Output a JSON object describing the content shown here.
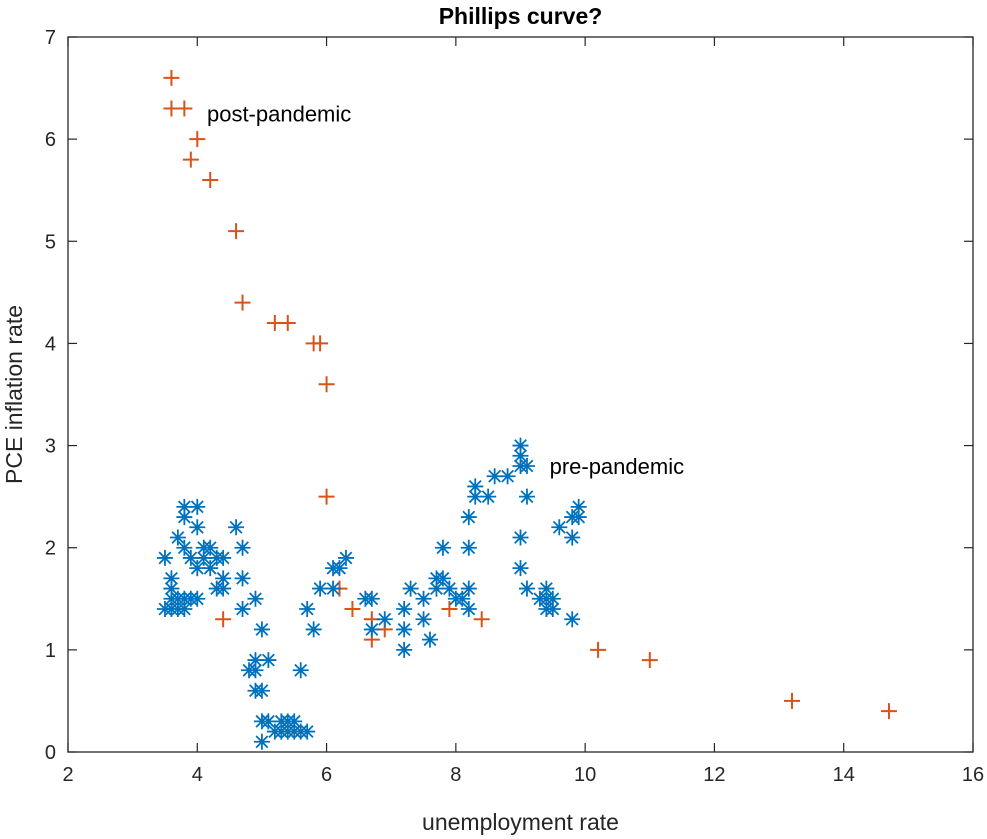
{
  "chart_data": {
    "type": "scatter",
    "title": "Phillips curve?",
    "xlabel": "unemployment rate",
    "ylabel": "PCE inflation rate",
    "xlim": [
      2,
      16
    ],
    "ylim": [
      0,
      7
    ],
    "xticks": [
      2,
      4,
      6,
      8,
      10,
      12,
      14,
      16
    ],
    "yticks": [
      0,
      1,
      2,
      3,
      4,
      5,
      6,
      7
    ],
    "grid": false,
    "colors": {
      "pre": "#0072bd",
      "post": "#d95319",
      "axis": "#262626"
    },
    "annotations": [
      {
        "text": "post-pandemic",
        "x": 4.15,
        "y": 6.25
      },
      {
        "text": "pre-pandemic",
        "x": 9.45,
        "y": 2.8
      }
    ],
    "series": [
      {
        "marker": "asterisk",
        "color": "#0072bd",
        "points": [
          [
            3.5,
            1.9
          ],
          [
            3.5,
            1.4
          ],
          [
            3.6,
            1.7
          ],
          [
            3.6,
            1.6
          ],
          [
            3.6,
            1.4
          ],
          [
            3.6,
            1.5
          ],
          [
            3.7,
            2.1
          ],
          [
            3.7,
            1.5
          ],
          [
            3.7,
            1.4
          ],
          [
            3.8,
            2.4
          ],
          [
            3.8,
            2.3
          ],
          [
            3.8,
            2.0
          ],
          [
            3.8,
            1.5
          ],
          [
            3.8,
            1.4
          ],
          [
            3.9,
            1.9
          ],
          [
            3.9,
            1.5
          ],
          [
            4.0,
            2.4
          ],
          [
            4.0,
            2.2
          ],
          [
            4.0,
            1.8
          ],
          [
            4.0,
            1.5
          ],
          [
            4.1,
            2.0
          ],
          [
            4.1,
            1.9
          ],
          [
            4.2,
            2.0
          ],
          [
            4.2,
            1.8
          ],
          [
            4.3,
            1.9
          ],
          [
            4.3,
            1.6
          ],
          [
            4.4,
            1.9
          ],
          [
            4.4,
            1.7
          ],
          [
            4.4,
            1.6
          ],
          [
            4.6,
            2.2
          ],
          [
            4.7,
            2.0
          ],
          [
            4.7,
            1.7
          ],
          [
            4.7,
            1.4
          ],
          [
            4.8,
            0.8
          ],
          [
            4.9,
            1.5
          ],
          [
            4.9,
            0.9
          ],
          [
            4.9,
            0.8
          ],
          [
            4.9,
            0.6
          ],
          [
            5.0,
            0.6
          ],
          [
            5.0,
            1.2
          ],
          [
            5.0,
            0.3
          ],
          [
            5.0,
            0.1
          ],
          [
            5.1,
            0.9
          ],
          [
            5.1,
            0.3
          ],
          [
            5.2,
            0.2
          ],
          [
            5.3,
            0.3
          ],
          [
            5.3,
            0.2
          ],
          [
            5.4,
            0.2
          ],
          [
            5.4,
            0.3
          ],
          [
            5.5,
            0.3
          ],
          [
            5.5,
            0.2
          ],
          [
            5.6,
            0.8
          ],
          [
            5.6,
            0.2
          ],
          [
            5.7,
            1.4
          ],
          [
            5.7,
            0.2
          ],
          [
            5.8,
            1.2
          ],
          [
            5.9,
            1.6
          ],
          [
            6.1,
            1.6
          ],
          [
            6.1,
            1.8
          ],
          [
            6.2,
            1.8
          ],
          [
            6.3,
            1.9
          ],
          [
            6.6,
            1.5
          ],
          [
            6.7,
            1.5
          ],
          [
            6.7,
            1.2
          ],
          [
            6.9,
            1.3
          ],
          [
            7.2,
            1.4
          ],
          [
            7.2,
            1.2
          ],
          [
            7.2,
            1.0
          ],
          [
            7.3,
            1.6
          ],
          [
            7.5,
            1.5
          ],
          [
            7.5,
            1.3
          ],
          [
            7.6,
            1.1
          ],
          [
            7.7,
            1.7
          ],
          [
            7.7,
            1.6
          ],
          [
            7.8,
            2.0
          ],
          [
            7.8,
            1.7
          ],
          [
            7.9,
            1.6
          ],
          [
            8.0,
            1.5
          ],
          [
            8.1,
            1.5
          ],
          [
            8.2,
            2.3
          ],
          [
            8.2,
            2.0
          ],
          [
            8.2,
            1.6
          ],
          [
            8.2,
            1.4
          ],
          [
            8.3,
            2.6
          ],
          [
            8.3,
            2.5
          ],
          [
            8.5,
            2.5
          ],
          [
            8.6,
            2.7
          ],
          [
            8.8,
            2.7
          ],
          [
            9.0,
            3.0
          ],
          [
            9.0,
            2.9
          ],
          [
            9.0,
            2.8
          ],
          [
            9.0,
            2.1
          ],
          [
            9.0,
            1.8
          ],
          [
            9.1,
            2.8
          ],
          [
            9.1,
            2.5
          ],
          [
            9.1,
            1.6
          ],
          [
            9.3,
            1.5
          ],
          [
            9.4,
            1.6
          ],
          [
            9.4,
            1.5
          ],
          [
            9.4,
            1.4
          ],
          [
            9.5,
            1.5
          ],
          [
            9.5,
            1.4
          ],
          [
            9.6,
            2.2
          ],
          [
            9.8,
            2.3
          ],
          [
            9.8,
            2.1
          ],
          [
            9.8,
            1.3
          ],
          [
            9.9,
            2.4
          ],
          [
            9.9,
            2.3
          ]
        ]
      },
      {
        "marker": "plus",
        "color": "#d95319",
        "points": [
          [
            3.6,
            6.6
          ],
          [
            3.6,
            6.3
          ],
          [
            3.8,
            6.3
          ],
          [
            4.0,
            6.0
          ],
          [
            3.9,
            5.8
          ],
          [
            4.2,
            5.6
          ],
          [
            4.6,
            5.1
          ],
          [
            4.7,
            4.4
          ],
          [
            5.2,
            4.2
          ],
          [
            5.4,
            4.2
          ],
          [
            5.8,
            4.0
          ],
          [
            5.9,
            4.0
          ],
          [
            6.0,
            3.6
          ],
          [
            6.0,
            2.5
          ],
          [
            6.2,
            1.6
          ],
          [
            6.4,
            1.4
          ],
          [
            4.4,
            1.3
          ],
          [
            6.7,
            1.3
          ],
          [
            6.7,
            1.1
          ],
          [
            6.9,
            1.2
          ],
          [
            7.9,
            1.4
          ],
          [
            8.4,
            1.3
          ],
          [
            10.2,
            1.0
          ],
          [
            11.0,
            0.9
          ],
          [
            13.2,
            0.5
          ],
          [
            14.7,
            0.4
          ]
        ]
      }
    ]
  }
}
